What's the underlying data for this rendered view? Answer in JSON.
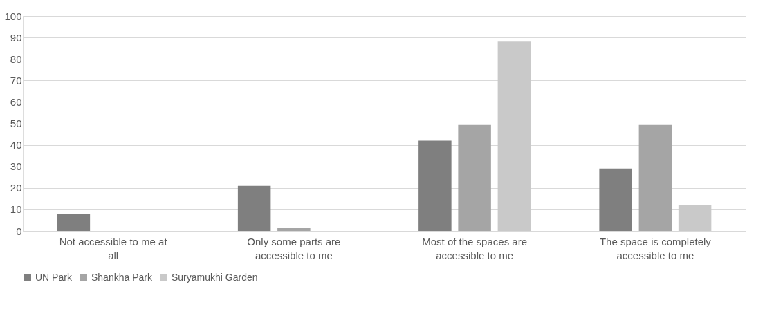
{
  "chart_data": {
    "type": "bar",
    "categories": [
      "Not accessible to me at all",
      "Only some parts are accessible to me",
      "Most of the spaces are accessible to me",
      "The space is completely accessible to me"
    ],
    "series": [
      {
        "name": "UN Park",
        "color": "#7f7f7f",
        "values": [
          8,
          21,
          42,
          29
        ]
      },
      {
        "name": "Shankha Park",
        "color": "#a5a5a5",
        "values": [
          0,
          1.3,
          49.3,
          49.3
        ]
      },
      {
        "name": "Suryamukhi Garden",
        "color": "#c9c9c9",
        "values": [
          0,
          0,
          88,
          12
        ]
      }
    ],
    "ylim": [
      0,
      100
    ],
    "yticks": [
      0,
      10,
      20,
      30,
      40,
      50,
      60,
      70,
      80,
      90,
      100
    ],
    "grid": "y",
    "legend": "bottom"
  }
}
